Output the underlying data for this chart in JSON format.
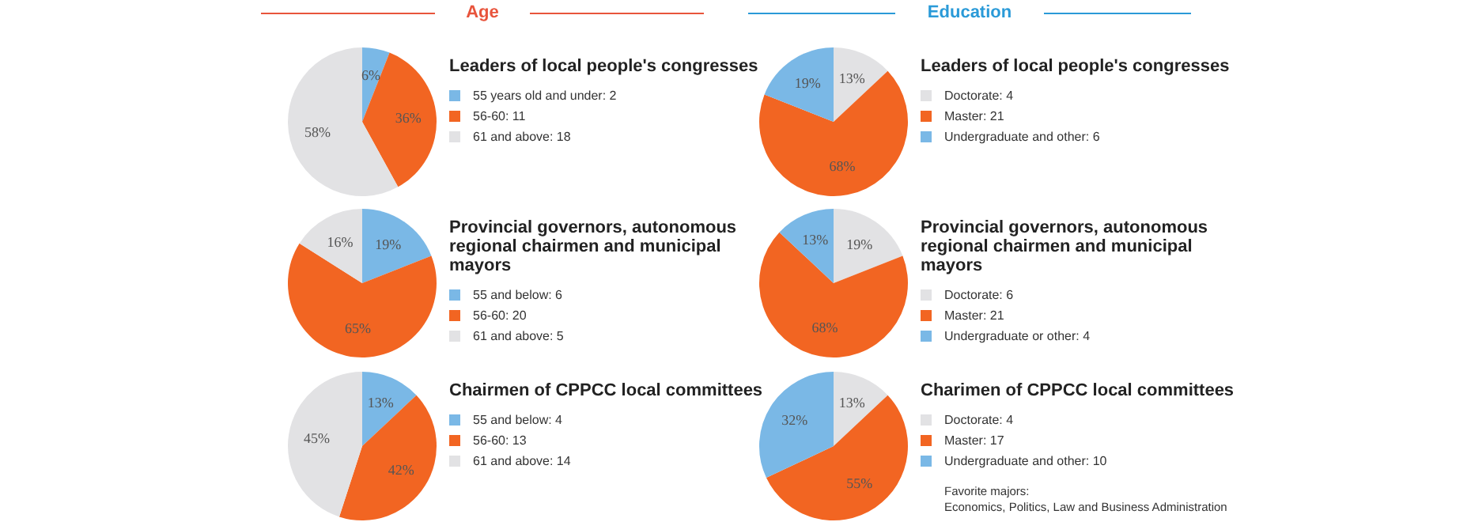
{
  "chart_data": [
    {
      "type": "pie",
      "title": "Leaders of local people's congresses",
      "annotations": [
        "Age"
      ],
      "legend": "right",
      "value_labels": [
        "6%",
        "36%",
        "58%"
      ],
      "categories": [
        "55 years old and under: 2",
        "56-60: 11",
        "61 and above: 18"
      ],
      "values": [
        6,
        36,
        58
      ],
      "colors": [
        "#7ab8e6",
        "#f26522",
        "#e2e2e4"
      ]
    },
    {
      "type": "pie",
      "title": "Leaders of local people's congresses",
      "annotations": [
        "Education"
      ],
      "legend": "right",
      "value_labels": [
        "13%",
        "68%",
        "19%"
      ],
      "categories": [
        "Doctorate: 4",
        "Master: 21",
        "Undergraduate and other: 6"
      ],
      "values": [
        13,
        68,
        19
      ],
      "colors": [
        "#e2e2e4",
        "#f26522",
        "#7ab8e6"
      ]
    },
    {
      "type": "pie",
      "title": "Provincial governors, autonomous regional chairmen and municipal mayors",
      "legend": "right",
      "value_labels": [
        "19%",
        "65%",
        "16%"
      ],
      "categories": [
        "55 and below: 6",
        "56-60: 20",
        "61 and above: 5"
      ],
      "values": [
        19,
        65,
        16
      ],
      "colors": [
        "#7ab8e6",
        "#f26522",
        "#e2e2e4"
      ]
    },
    {
      "type": "pie",
      "title": "Provincial governors, autonomous regional chairmen and municipal mayors",
      "legend": "right",
      "value_labels": [
        "19%",
        "68%",
        "13%"
      ],
      "categories": [
        "Doctorate: 6",
        "Master: 21",
        "Undergraduate or other: 4"
      ],
      "values": [
        19,
        68,
        13
      ],
      "colors": [
        "#e2e2e4",
        "#f26522",
        "#7ab8e6"
      ]
    },
    {
      "type": "pie",
      "title": "Chairmen of CPPCC local committees",
      "legend": "right",
      "value_labels": [
        "13%",
        "42%",
        "45%"
      ],
      "categories": [
        "55 and below: 4",
        "56-60: 13",
        "61 and above: 14"
      ],
      "values": [
        13,
        42,
        45
      ],
      "colors": [
        "#7ab8e6",
        "#f26522",
        "#e2e2e4"
      ]
    },
    {
      "type": "pie",
      "title": "Charimen of CPPCC local committees",
      "annotations": [
        "Favorite majors:\nEconomics, Politics, Law and Business Administration"
      ],
      "legend": "right",
      "value_labels": [
        "13%",
        "55%",
        "32%"
      ],
      "categories": [
        "Doctorate: 4",
        "Master: 17",
        "Undergraduate and other: 10"
      ],
      "values": [
        13,
        55,
        32
      ],
      "colors": [
        "#e2e2e4",
        "#f26522",
        "#7ab8e6"
      ]
    }
  ]
}
